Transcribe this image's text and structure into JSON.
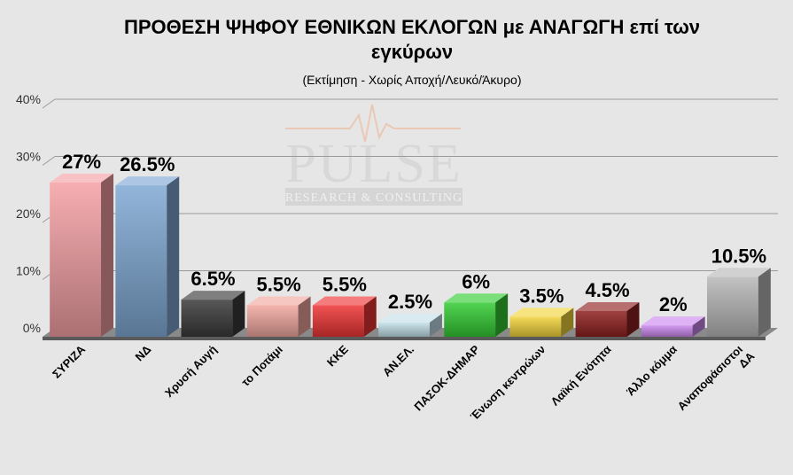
{
  "watermark": {
    "name": "PULSE",
    "tagline": "RESEARCH & CONSULTING"
  },
  "chart_data": {
    "type": "bar",
    "title_lines": [
      "ΠΡΟΘΕΣΗ ΨΗΦΟΥ ΕΘΝΙΚΩΝ ΕΚΛΟΓΩΝ με ΑΝΑΓΩΓΗ επί των",
      "εγκύρων"
    ],
    "subtitle": "(Εκτίμηση  -  Χωρίς Αποχή/Λευκό/Άκυρο)",
    "xlabel": "",
    "ylabel": "",
    "ylim": [
      0,
      40
    ],
    "yticks": [
      0,
      10,
      20,
      30,
      40
    ],
    "ytick_labels": [
      "0%",
      "10%",
      "20%",
      "30%",
      "40%"
    ],
    "grid": true,
    "categories": [
      [
        "ΣΥΡΙΖΑ"
      ],
      [
        "ΝΔ"
      ],
      [
        "Χρυσή Αυγή"
      ],
      [
        "το Ποτάμι"
      ],
      [
        "ΚΚΕ"
      ],
      [
        "ΑΝ.ΕΛ."
      ],
      [
        "ΠΑΣΟΚ-ΔΗΜΑΡ"
      ],
      [
        "Ένωση κεντρώων"
      ],
      [
        "Λαϊκή Ενότητα"
      ],
      [
        "Άλλο κόμμα"
      ],
      [
        "Αναποφάσιστοι",
        "ΔΑ"
      ]
    ],
    "values": [
      27,
      26.5,
      6.5,
      5.5,
      5.5,
      2.5,
      6,
      3.5,
      4.5,
      2,
      10.5
    ],
    "value_labels": [
      "27%",
      "26.5%",
      "6.5%",
      "5.5%",
      "5.5%",
      "2.5%",
      "6%",
      "3.5%",
      "4.5%",
      "2%",
      "10.5%"
    ],
    "colors": [
      "#f4a0a4",
      "#7fa8d4",
      "#3a3a3a",
      "#f1a8a0",
      "#ee3535",
      "#c4e0ea",
      "#33cc33",
      "#f2d43a",
      "#8f2020",
      "#cc88ee",
      "#b8b8b8"
    ]
  }
}
